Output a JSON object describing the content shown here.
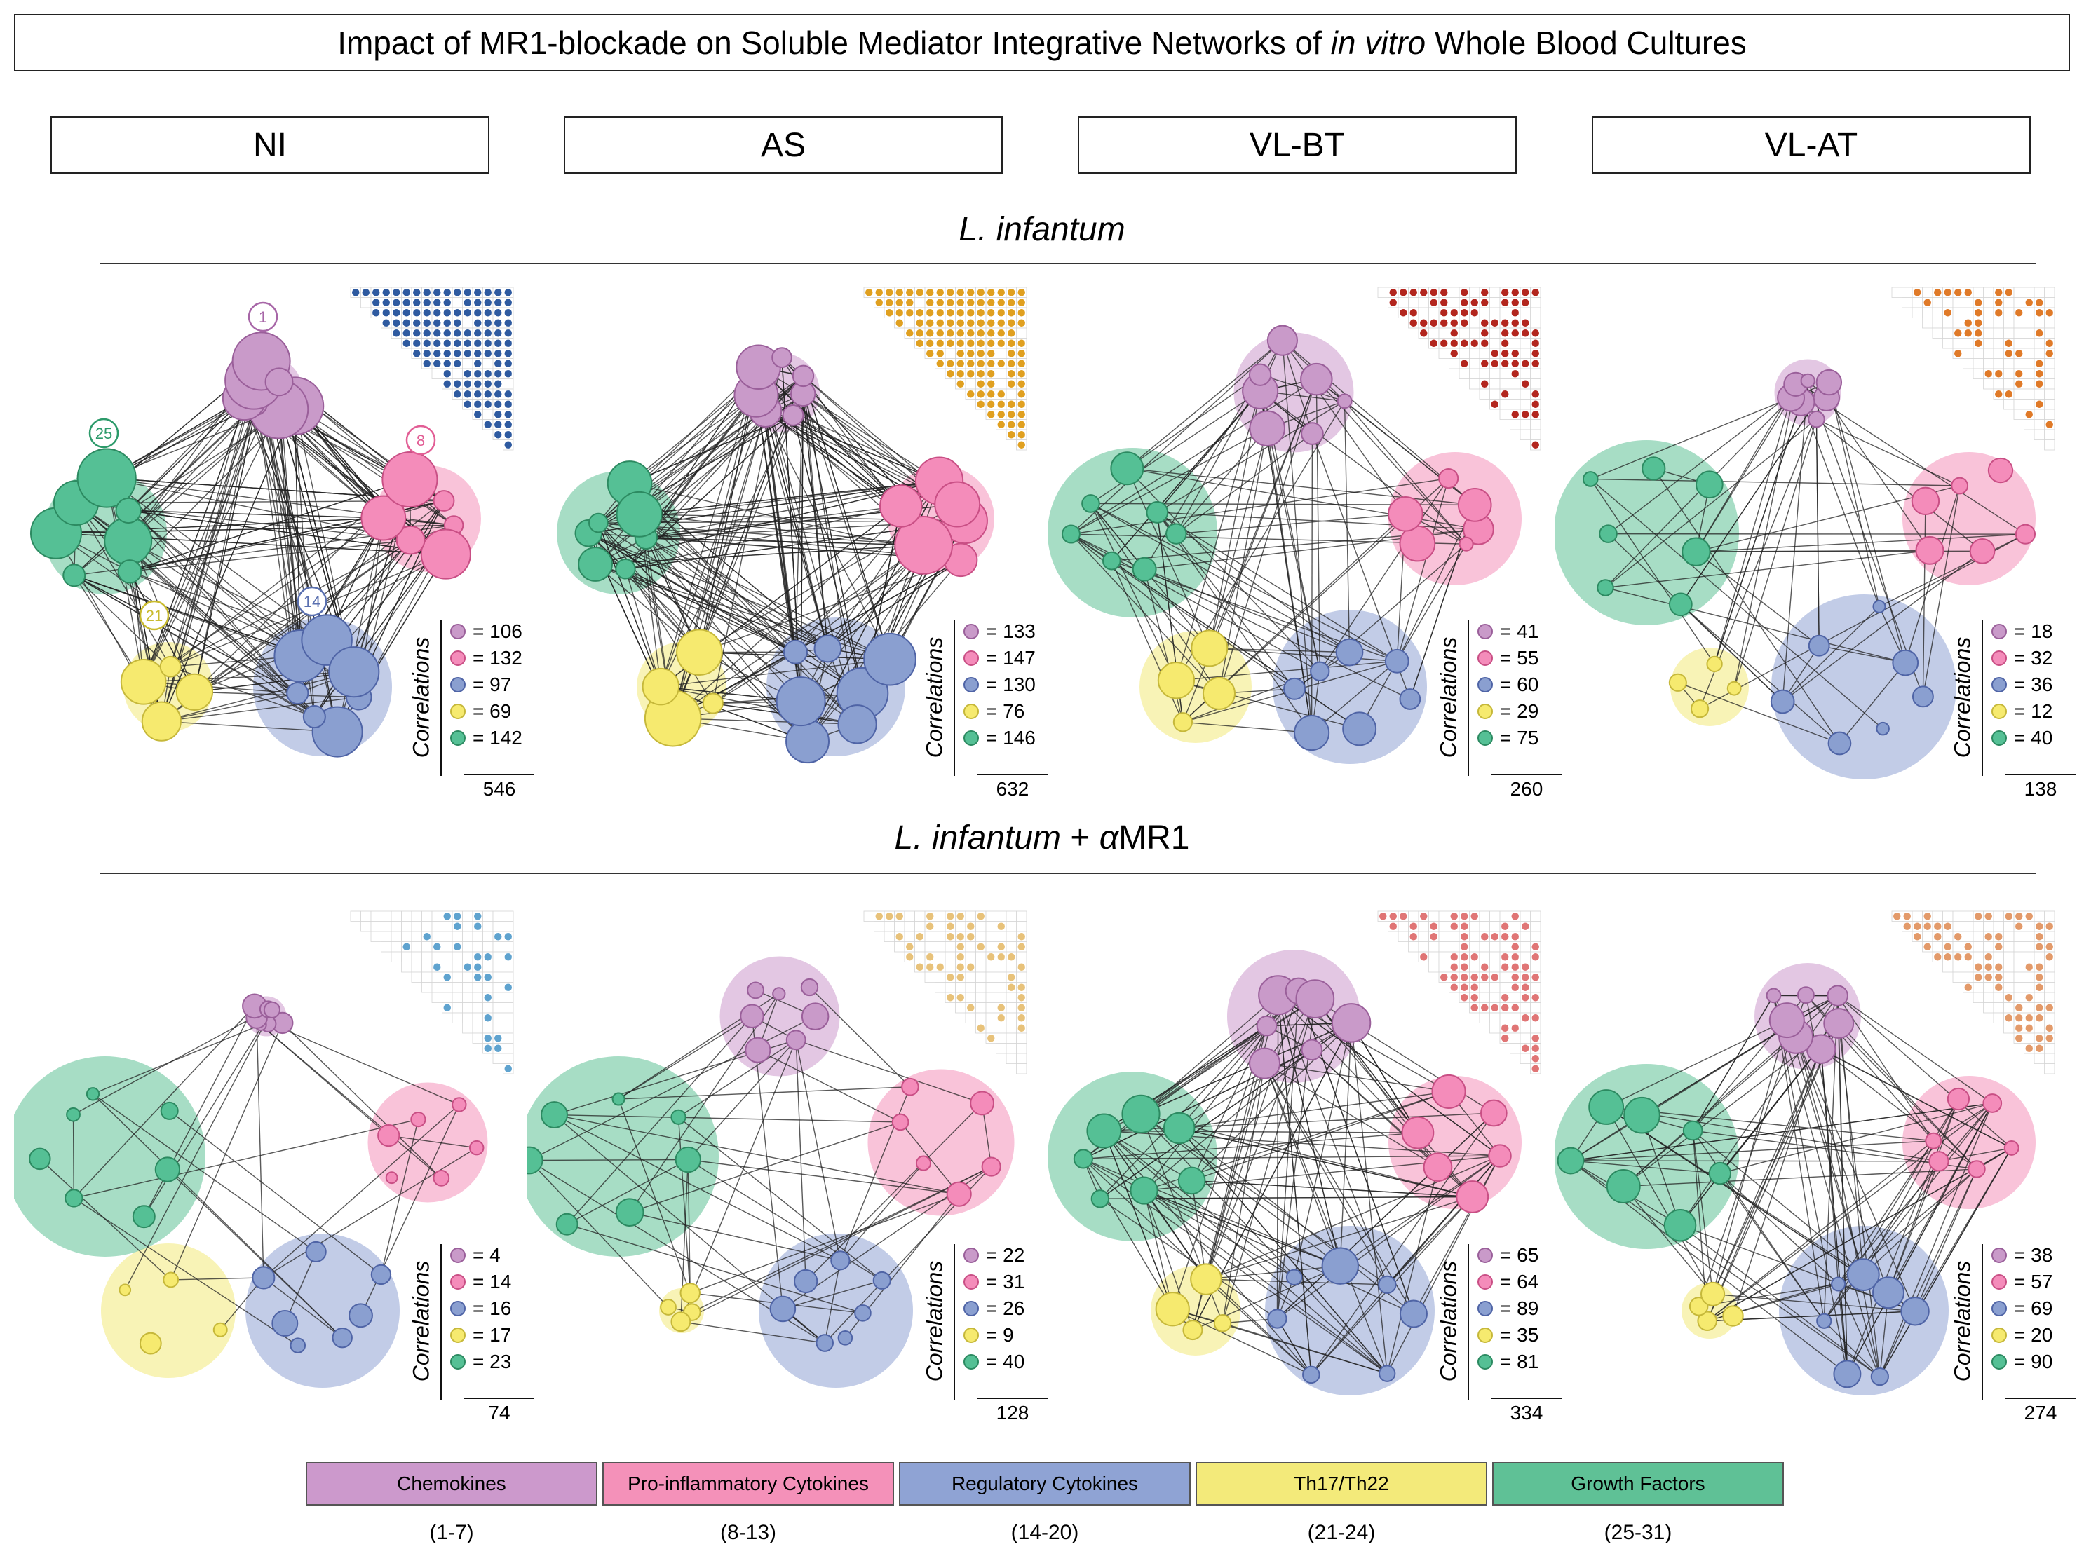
{
  "title": {
    "text_before": "Impact of MR1-blockade on Soluble Mediator Integrative Networks of ",
    "text_italic": "in vitro",
    "text_after": " Whole Blood Cultures"
  },
  "groups": [
    "NI",
    "AS",
    "VL-BT",
    "VL-AT"
  ],
  "sections": {
    "top": {
      "title": "L. infantum"
    },
    "bottom": {
      "title": "L. infantum + αMR1",
      "title_italic": "L. infantum",
      "title_plus": " + ",
      "title_alpha": "α",
      "title_mr1": "MR1"
    }
  },
  "legend_label": "Correlations",
  "categories": [
    {
      "name": "Chemokines",
      "range": "(1-7)",
      "color": "#cc99cc",
      "node_color": "#c99ac9",
      "stroke": "#9a5f9a"
    },
    {
      "name": "Pro-inflammatory Cytokines",
      "range": "(8-13)",
      "color": "#f491b9",
      "node_color": "#f48cba",
      "stroke": "#c94f85"
    },
    {
      "name": "Regulatory Cytokines",
      "range": "(14-20)",
      "color": "#8fa3d4",
      "node_color": "#8a9fd0",
      "stroke": "#4f64a6"
    },
    {
      "name": "Th17/Th22",
      "range": "(21-24)",
      "color": "#f3ea7a",
      "node_color": "#f6ea6f",
      "stroke": "#c6b83a"
    },
    {
      "name": "Growth Factors",
      "range": "(25-31)",
      "color": "#5fc196",
      "node_color": "#55c095",
      "stroke": "#2c8a61"
    }
  ],
  "annotations": [
    {
      "number": "1",
      "color": "#a766a7"
    },
    {
      "number": "8",
      "color": "#e25e95"
    },
    {
      "number": "14",
      "color": "#5a70b0"
    },
    {
      "number": "21",
      "color": "#c9bb2f"
    },
    {
      "number": "25",
      "color": "#2c9a6a"
    }
  ],
  "panels": [
    {
      "section": "top",
      "group": "NI",
      "matrix_color": "#2e5aa0",
      "density": 0.92,
      "lines": 546,
      "counts": [
        {
          "value": "= 106"
        },
        {
          "value": "= 132"
        },
        {
          "value": "= 97"
        },
        {
          "value": "= 69"
        },
        {
          "value": "= 142"
        }
      ],
      "total": "546",
      "hull_scale": [
        0.55,
        0.8,
        0.9,
        0.8,
        0.8
      ],
      "node_scale": 1.0
    },
    {
      "section": "top",
      "group": "AS",
      "matrix_color": "#e0a020",
      "density": 0.95,
      "lines": 632,
      "counts": [
        {
          "value": "= 133"
        },
        {
          "value": "= 147"
        },
        {
          "value": "= 130"
        },
        {
          "value": "= 76"
        },
        {
          "value": "= 146"
        }
      ],
      "total": "632",
      "hull_scale": [
        0.6,
        0.8,
        0.9,
        0.8,
        0.8
      ],
      "node_scale": 1.0
    },
    {
      "section": "top",
      "group": "VL-BT",
      "matrix_color": "#b3261e",
      "density": 0.45,
      "lines": 260,
      "counts": [
        {
          "value": "= 41"
        },
        {
          "value": "= 55"
        },
        {
          "value": "= 60"
        },
        {
          "value": "= 29"
        },
        {
          "value": "= 75"
        }
      ],
      "total": "260",
      "hull_scale": [
        0.9,
        1.0,
        1.0,
        1.0,
        1.1
      ],
      "node_scale": 0.55
    },
    {
      "section": "top",
      "group": "VL-AT",
      "matrix_color": "#e07a28",
      "density": 0.28,
      "lines": 138,
      "counts": [
        {
          "value": "= 18"
        },
        {
          "value": "= 32"
        },
        {
          "value": "= 36"
        },
        {
          "value": "= 12"
        },
        {
          "value": "= 40"
        }
      ],
      "total": "138",
      "hull_scale": [
        0.5,
        1.0,
        1.2,
        0.7,
        1.2
      ],
      "node_scale": 0.4
    },
    {
      "section": "bottom",
      "group": "NI",
      "matrix_color": "#5fa3cf",
      "density": 0.22,
      "lines": 74,
      "counts": [
        {
          "value": "= 4"
        },
        {
          "value": "= 14"
        },
        {
          "value": "= 16"
        },
        {
          "value": "= 17"
        },
        {
          "value": "= 23"
        }
      ],
      "total": "74",
      "hull_scale": [
        0.3,
        0.9,
        1.0,
        1.2,
        1.3
      ],
      "node_scale": 0.35
    },
    {
      "section": "bottom",
      "group": "AS",
      "matrix_color": "#e8c27a",
      "density": 0.3,
      "lines": 128,
      "counts": [
        {
          "value": "= 22"
        },
        {
          "value": "= 31"
        },
        {
          "value": "= 26"
        },
        {
          "value": "= 9"
        },
        {
          "value": "= 40"
        }
      ],
      "total": "128",
      "hull_scale": [
        0.9,
        1.1,
        1.0,
        0.4,
        1.3
      ],
      "node_scale": 0.4
    },
    {
      "section": "bottom",
      "group": "VL-BT",
      "matrix_color": "#e07575",
      "density": 0.55,
      "lines": 334,
      "counts": [
        {
          "value": "= 65"
        },
        {
          "value": "= 64"
        },
        {
          "value": "= 89"
        },
        {
          "value": "= 35"
        },
        {
          "value": "= 81"
        }
      ],
      "total": "334",
      "hull_scale": [
        1.0,
        1.0,
        1.1,
        0.8,
        1.1
      ],
      "node_scale": 0.6
    },
    {
      "section": "bottom",
      "group": "VL-AT",
      "matrix_color": "#e39a6a",
      "density": 0.5,
      "lines": 274,
      "counts": [
        {
          "value": "= 38"
        },
        {
          "value": "= 57"
        },
        {
          "value": "= 69"
        },
        {
          "value": "= 20"
        },
        {
          "value": "= 90"
        }
      ],
      "total": "274",
      "hull_scale": [
        0.8,
        1.0,
        1.1,
        0.5,
        1.2
      ],
      "node_scale": 0.55
    }
  ]
}
